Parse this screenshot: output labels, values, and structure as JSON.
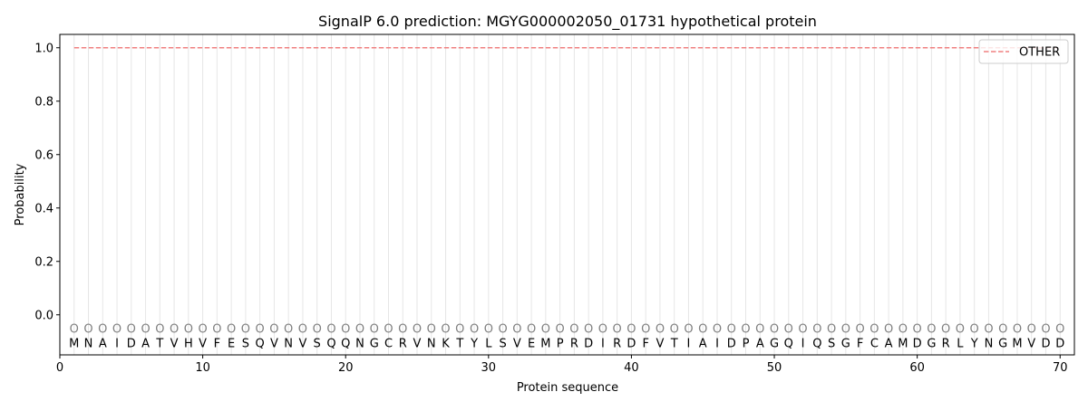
{
  "chart_data": {
    "type": "line",
    "title": "SignalP 6.0 prediction: MGYG000002050_01731 hypothetical protein",
    "xlabel": "Protein sequence",
    "ylabel": "Probability",
    "xlim": [
      0,
      71
    ],
    "ylim": [
      -0.15,
      1.05
    ],
    "xticks": [
      0,
      10,
      20,
      30,
      40,
      50,
      60,
      70
    ],
    "yticks": [
      0.0,
      0.2,
      0.4,
      0.6,
      0.8,
      1.0
    ],
    "ytick_labels": [
      "0.0",
      "0.2",
      "0.4",
      "0.6",
      "0.8",
      "1.0"
    ],
    "grid": "vertical lines at each residue",
    "legend_position": "top-right",
    "sequence": [
      "M",
      "N",
      "A",
      "I",
      "D",
      "A",
      "T",
      "V",
      "H",
      "V",
      "F",
      "E",
      "S",
      "Q",
      "V",
      "N",
      "V",
      "S",
      "Q",
      "Q",
      "N",
      "G",
      "C",
      "R",
      "V",
      "N",
      "K",
      "T",
      "Y",
      "L",
      "S",
      "V",
      "E",
      "M",
      "P",
      "R",
      "D",
      "I",
      "R",
      "D",
      "F",
      "V",
      "T",
      "I",
      "A",
      "I",
      "D",
      "P",
      "A",
      "G",
      "Q",
      "I",
      "Q",
      "S",
      "G",
      "F",
      "C",
      "A",
      "M",
      "D",
      "G",
      "R",
      "L",
      "Y",
      "N",
      "G",
      "M",
      "V",
      "D",
      "D"
    ],
    "region_label": "O",
    "series": [
      {
        "name": "OTHER",
        "color": "#f08080",
        "style": "dashed",
        "x_start": 1,
        "x_end": 70,
        "value": 1.0
      }
    ]
  }
}
